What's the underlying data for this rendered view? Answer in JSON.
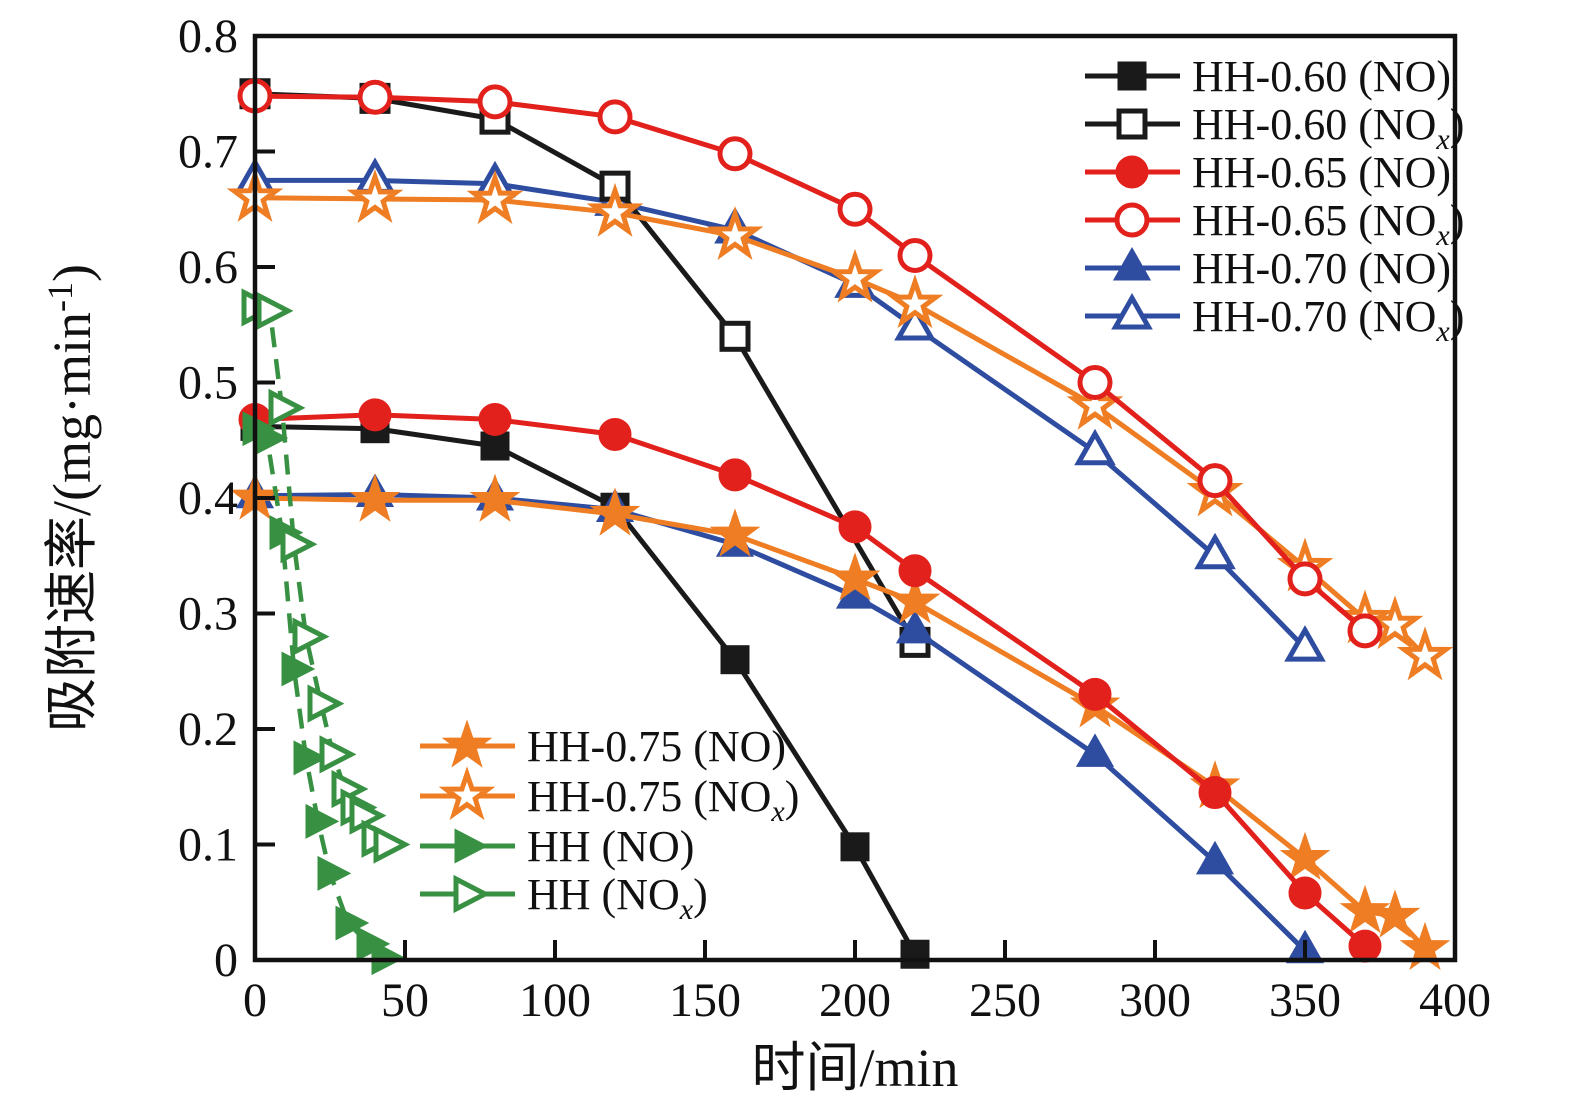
{
  "chart_data": {
    "type": "line",
    "title": "",
    "xlabel": "时间/min",
    "ylabel": "吸附速率/(mg·min⁻¹)",
    "ylabel_parts": {
      "pre": "吸附速率/(mg·min",
      "sup": "-1",
      "post": ")"
    },
    "xlim": [
      0,
      400
    ],
    "ylim": [
      0,
      0.8
    ],
    "xticks": [
      0,
      50,
      100,
      150,
      200,
      250,
      300,
      350,
      400
    ],
    "yticks": [
      0,
      0.1,
      0.2,
      0.3,
      0.4,
      0.5,
      0.6,
      0.7,
      0.8
    ],
    "ytick_labels": [
      "0",
      "0.1",
      "0.2",
      "0.3",
      "0.4",
      "0.5",
      "0.6",
      "0.7",
      "0.8"
    ],
    "grid": false,
    "palette": {
      "black": "#1a1a1a",
      "red": "#e2211c",
      "blue": "#2f4da0",
      "orange": "#ee7d23",
      "green": "#389143"
    },
    "series": [
      {
        "label": "HH-0.60",
        "species": "NO",
        "color": "#1a1a1a",
        "marker": "square",
        "fill": "filled",
        "linestyle": "solid",
        "points": [
          [
            0,
            0.462
          ],
          [
            40,
            0.46
          ],
          [
            80,
            0.445
          ],
          [
            120,
            0.392
          ],
          [
            160,
            0.26
          ],
          [
            200,
            0.098
          ],
          [
            220,
            0.005
          ]
        ]
      },
      {
        "label": "HH-0.60",
        "species": "NOx",
        "color": "#1a1a1a",
        "marker": "square",
        "fill": "open",
        "linestyle": "solid",
        "points": [
          [
            0,
            0.75
          ],
          [
            40,
            0.746
          ],
          [
            80,
            0.728
          ],
          [
            120,
            0.67
          ],
          [
            160,
            0.54
          ],
          [
            220,
            0.275
          ]
        ]
      },
      {
        "label": "HH-0.65",
        "species": "NO",
        "color": "#e2211c",
        "marker": "circle",
        "fill": "filled",
        "linestyle": "solid",
        "points": [
          [
            0,
            0.468
          ],
          [
            40,
            0.472
          ],
          [
            80,
            0.468
          ],
          [
            120,
            0.455
          ],
          [
            160,
            0.42
          ],
          [
            200,
            0.375
          ],
          [
            220,
            0.337
          ],
          [
            280,
            0.23
          ],
          [
            320,
            0.145
          ],
          [
            350,
            0.058
          ],
          [
            370,
            0.012
          ]
        ]
      },
      {
        "label": "HH-0.65",
        "species": "NOx",
        "color": "#e2211c",
        "marker": "circle",
        "fill": "open",
        "linestyle": "solid",
        "points": [
          [
            0,
            0.748
          ],
          [
            40,
            0.747
          ],
          [
            80,
            0.743
          ],
          [
            120,
            0.73
          ],
          [
            160,
            0.698
          ],
          [
            200,
            0.65
          ],
          [
            220,
            0.61
          ],
          [
            280,
            0.5
          ],
          [
            320,
            0.415
          ],
          [
            350,
            0.33
          ],
          [
            370,
            0.285
          ]
        ]
      },
      {
        "label": "HH-0.70",
        "species": "NO",
        "color": "#2f4da0",
        "marker": "triangle-up",
        "fill": "filled",
        "linestyle": "solid",
        "points": [
          [
            0,
            0.402
          ],
          [
            40,
            0.403
          ],
          [
            80,
            0.4
          ],
          [
            120,
            0.39
          ],
          [
            160,
            0.36
          ],
          [
            200,
            0.315
          ],
          [
            220,
            0.285
          ],
          [
            280,
            0.178
          ],
          [
            320,
            0.085
          ],
          [
            350,
            0.008
          ]
        ]
      },
      {
        "label": "HH-0.70",
        "species": "NOx",
        "color": "#2f4da0",
        "marker": "triangle-up",
        "fill": "open",
        "linestyle": "solid",
        "points": [
          [
            0,
            0.675
          ],
          [
            40,
            0.675
          ],
          [
            80,
            0.672
          ],
          [
            120,
            0.656
          ],
          [
            160,
            0.632
          ],
          [
            200,
            0.585
          ],
          [
            220,
            0.548
          ],
          [
            280,
            0.44
          ],
          [
            320,
            0.35
          ],
          [
            350,
            0.27
          ]
        ]
      },
      {
        "label": "HH-0.75",
        "species": "NO",
        "color": "#ee7d23",
        "marker": "star",
        "fill": "filled",
        "linestyle": "solid",
        "points": [
          [
            0,
            0.4
          ],
          [
            40,
            0.398
          ],
          [
            80,
            0.398
          ],
          [
            120,
            0.386
          ],
          [
            160,
            0.368
          ],
          [
            200,
            0.33
          ],
          [
            220,
            0.31
          ],
          [
            280,
            0.22
          ],
          [
            320,
            0.15
          ],
          [
            350,
            0.088
          ],
          [
            370,
            0.042
          ],
          [
            380,
            0.038
          ],
          [
            390,
            0.01
          ]
        ]
      },
      {
        "label": "HH-0.75",
        "species": "NOx",
        "color": "#ee7d23",
        "marker": "star",
        "fill": "open",
        "linestyle": "solid",
        "points": [
          [
            0,
            0.66
          ],
          [
            40,
            0.659
          ],
          [
            80,
            0.658
          ],
          [
            120,
            0.647
          ],
          [
            160,
            0.627
          ],
          [
            200,
            0.59
          ],
          [
            220,
            0.568
          ],
          [
            280,
            0.48
          ],
          [
            320,
            0.405
          ],
          [
            350,
            0.34
          ],
          [
            370,
            0.295
          ],
          [
            380,
            0.29
          ],
          [
            390,
            0.263
          ]
        ]
      },
      {
        "label": "HH",
        "species": "NO",
        "color": "#389143",
        "marker": "triangle-right",
        "fill": "filled",
        "linestyle": "dashed",
        "points": [
          [
            0,
            0.46
          ],
          [
            4,
            0.452
          ],
          [
            9,
            0.37
          ],
          [
            13,
            0.252
          ],
          [
            17,
            0.175
          ],
          [
            21,
            0.12
          ],
          [
            25,
            0.075
          ],
          [
            31,
            0.032
          ],
          [
            38,
            0.014
          ],
          [
            43,
            0.002
          ]
        ]
      },
      {
        "label": "HH",
        "species": "NOx",
        "color": "#389143",
        "marker": "triangle-right",
        "fill": "open",
        "linestyle": "dashed",
        "points": [
          [
            0,
            0.565
          ],
          [
            5,
            0.562
          ],
          [
            9,
            0.478
          ],
          [
            13,
            0.36
          ],
          [
            17,
            0.28
          ],
          [
            22,
            0.222
          ],
          [
            26,
            0.178
          ],
          [
            30,
            0.148
          ],
          [
            33,
            0.132
          ],
          [
            36,
            0.125
          ],
          [
            40,
            0.105
          ],
          [
            44,
            0.1
          ]
        ]
      }
    ],
    "draw_order": [
      5,
      0,
      1,
      4,
      6,
      7,
      2,
      3,
      8,
      9
    ],
    "legends": [
      {
        "position": "top-right",
        "series": [
          0,
          1,
          2,
          3,
          4,
          5
        ]
      },
      {
        "position": "bottom-left",
        "series": [
          6,
          7,
          8,
          9
        ]
      }
    ]
  }
}
